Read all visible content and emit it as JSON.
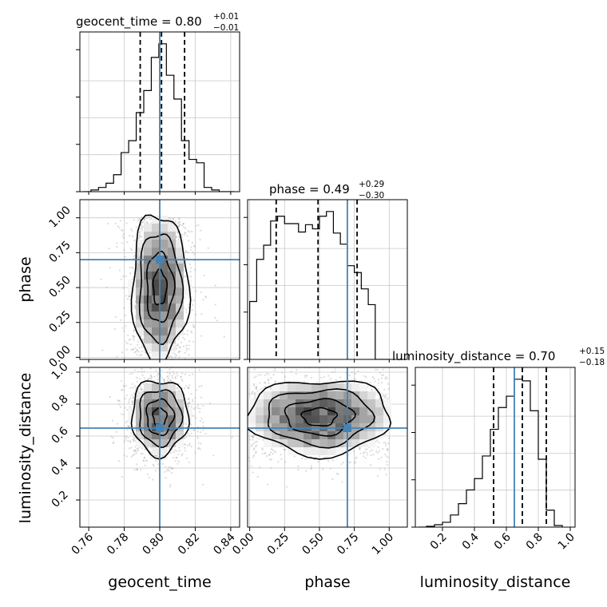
{
  "chart_data": {
    "type": "corner",
    "parameters": [
      {
        "key": "geocent_time",
        "label": "geocent_time",
        "range": [
          0.755,
          0.845
        ],
        "ticks": [
          "0.76",
          "0.78",
          "0.80",
          "0.82",
          "0.84"
        ],
        "tick_values": [
          0.76,
          0.78,
          0.8,
          0.82,
          0.84
        ],
        "truth": 0.8
      },
      {
        "key": "phase",
        "label": "phase",
        "range": [
          -0.015,
          1.13
        ],
        "ticks": [
          "0.00",
          "0.25",
          "0.50",
          "0.75",
          "1.00"
        ],
        "tick_values": [
          0.0,
          0.25,
          0.5,
          0.75,
          1.0
        ],
        "truth": 0.7
      },
      {
        "key": "luminosity_distance",
        "label": "luminosity_distance",
        "range": [
          0.03,
          1.03
        ],
        "ticks": [
          "0.2",
          "0.4",
          "0.6",
          "0.8",
          "1.0"
        ],
        "tick_values": [
          0.2,
          0.4,
          0.6,
          0.8,
          1.0
        ],
        "truth": 0.65
      }
    ],
    "titles": [
      {
        "param": "geocent_time",
        "name": "geocent_time",
        "median": "0.80",
        "plus": "+0.01",
        "minus": "−0.01"
      },
      {
        "param": "phase",
        "name": "phase",
        "median": "0.49",
        "plus": "+0.29",
        "minus": "−0.30"
      },
      {
        "param": "luminosity_distance",
        "name": "luminosity_distance",
        "median": "0.70",
        "plus": "+0.15",
        "minus": "−0.18"
      }
    ],
    "histograms": [
      {
        "param": "geocent_time",
        "edges_start": 0.757,
        "bin_width": 0.00425,
        "counts": [
          0,
          2,
          5,
          10,
          20,
          46,
          60,
          93,
          119,
          158,
          174,
          137,
          109,
          60,
          38,
          34,
          5,
          2,
          0,
          0
        ],
        "quantiles": [
          0.789,
          0.801,
          0.814
        ]
      },
      {
        "param": "phase",
        "edges_start": 0.0,
        "bin_width": 0.05,
        "counts": [
          110,
          190,
          217,
          263,
          272,
          258,
          258,
          242,
          256,
          248,
          272,
          281,
          240,
          219,
          178,
          165,
          134,
          104,
          0,
          0
        ],
        "quantiles": [
          0.19,
          0.49,
          0.77
        ]
      },
      {
        "param": "luminosity_distance",
        "edges_start": 0.05,
        "bin_width": 0.05,
        "counts": [
          0,
          1,
          3,
          6,
          15,
          29,
          46,
          60,
          88,
          121,
          148,
          162,
          183,
          181,
          144,
          84,
          21,
          2
        ],
        "quantiles": [
          0.52,
          0.7,
          0.85
        ]
      }
    ],
    "pairs": [
      {
        "x": "geocent_time",
        "y": "phase",
        "x_center": 0.8,
        "x_sigma": 0.0095,
        "y_center": 0.5,
        "y_sigma": 0.3,
        "y_min": 0.0,
        "y_max": 1.0
      },
      {
        "x": "geocent_time",
        "y": "luminosity_distance",
        "x_center": 0.8,
        "x_sigma": 0.0095,
        "y_center": 0.72,
        "y_sigma": 0.14
      },
      {
        "x": "phase",
        "y": "luminosity_distance",
        "x_center": 0.5,
        "x_sigma": 0.3,
        "x_min": 0.0,
        "x_max": 1.0,
        "y_center": 0.72,
        "y_sigma": 0.14
      }
    ],
    "colors": {
      "truth": "#4682b4",
      "hist": "#000000",
      "grid": "#c8c8c8",
      "scatter": "#9a9a9a"
    },
    "grid": true
  }
}
